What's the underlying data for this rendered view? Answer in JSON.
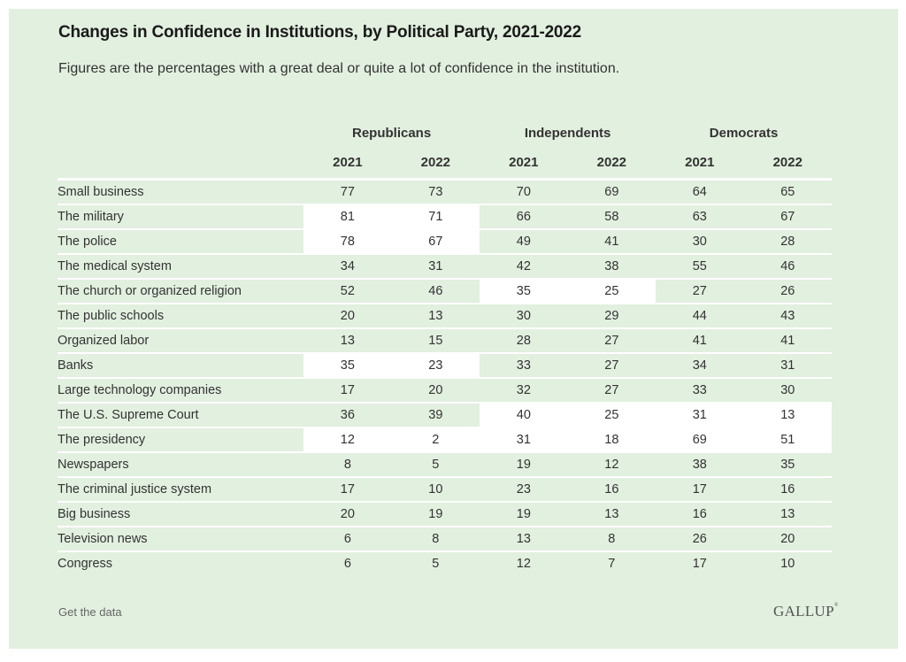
{
  "header": {
    "title": "Changes in Confidence in Institutions, by Political Party, 2021-2022",
    "subtitle": "Figures are the percentages with a great deal or quite a lot of confidence in the institution."
  },
  "footer": {
    "link_label": "Get the data",
    "logo_text": "GALLUP",
    "logo_mark": "®"
  },
  "chart_data": {
    "type": "table",
    "title": "Changes in Confidence in Institutions, by Political Party, 2021-2022",
    "subtitle": "Figures are the percentages with a great deal or quite a lot of confidence in the institution.",
    "groups": [
      "Republicans",
      "Independents",
      "Democrats"
    ],
    "years": [
      "2021",
      "2022"
    ],
    "columns": [
      "Republicans 2021",
      "Republicans 2022",
      "Independents 2021",
      "Independents 2022",
      "Democrats 2021",
      "Democrats 2022"
    ],
    "highlight_color": "#ffffff",
    "base_color": "#e2f0df",
    "rows": [
      {
        "label": "Small business",
        "values": [
          77,
          73,
          70,
          69,
          64,
          65
        ],
        "highlight": [
          false,
          false,
          false
        ]
      },
      {
        "label": "The military",
        "values": [
          81,
          71,
          66,
          58,
          63,
          67
        ],
        "highlight": [
          true,
          false,
          false
        ]
      },
      {
        "label": "The police",
        "values": [
          78,
          67,
          49,
          41,
          30,
          28
        ],
        "highlight": [
          true,
          false,
          false
        ]
      },
      {
        "label": "The medical system",
        "values": [
          34,
          31,
          42,
          38,
          55,
          46
        ],
        "highlight": [
          false,
          false,
          false
        ]
      },
      {
        "label": "The church or organized religion",
        "values": [
          52,
          46,
          35,
          25,
          27,
          26
        ],
        "highlight": [
          false,
          true,
          false
        ]
      },
      {
        "label": "The public schools",
        "values": [
          20,
          13,
          30,
          29,
          44,
          43
        ],
        "highlight": [
          false,
          false,
          false
        ]
      },
      {
        "label": "Organized labor",
        "values": [
          13,
          15,
          28,
          27,
          41,
          41
        ],
        "highlight": [
          false,
          false,
          false
        ]
      },
      {
        "label": "Banks",
        "values": [
          35,
          23,
          33,
          27,
          34,
          31
        ],
        "highlight": [
          true,
          false,
          false
        ]
      },
      {
        "label": "Large technology companies",
        "values": [
          17,
          20,
          32,
          27,
          33,
          30
        ],
        "highlight": [
          false,
          false,
          false
        ]
      },
      {
        "label": "The U.S. Supreme Court",
        "values": [
          36,
          39,
          40,
          25,
          31,
          13
        ],
        "highlight": [
          false,
          true,
          true
        ]
      },
      {
        "label": "The presidency",
        "values": [
          12,
          2,
          31,
          18,
          69,
          51
        ],
        "highlight": [
          true,
          true,
          true
        ]
      },
      {
        "label": "Newspapers",
        "values": [
          8,
          5,
          19,
          12,
          38,
          35
        ],
        "highlight": [
          false,
          false,
          false
        ]
      },
      {
        "label": "The criminal justice system",
        "values": [
          17,
          10,
          23,
          16,
          17,
          16
        ],
        "highlight": [
          false,
          false,
          false
        ]
      },
      {
        "label": "Big business",
        "values": [
          20,
          19,
          19,
          13,
          16,
          13
        ],
        "highlight": [
          false,
          false,
          false
        ]
      },
      {
        "label": "Television news",
        "values": [
          6,
          8,
          13,
          8,
          26,
          20
        ],
        "highlight": [
          false,
          false,
          false
        ]
      },
      {
        "label": "Congress",
        "values": [
          6,
          5,
          12,
          7,
          17,
          10
        ],
        "highlight": [
          false,
          false,
          false
        ]
      }
    ]
  }
}
